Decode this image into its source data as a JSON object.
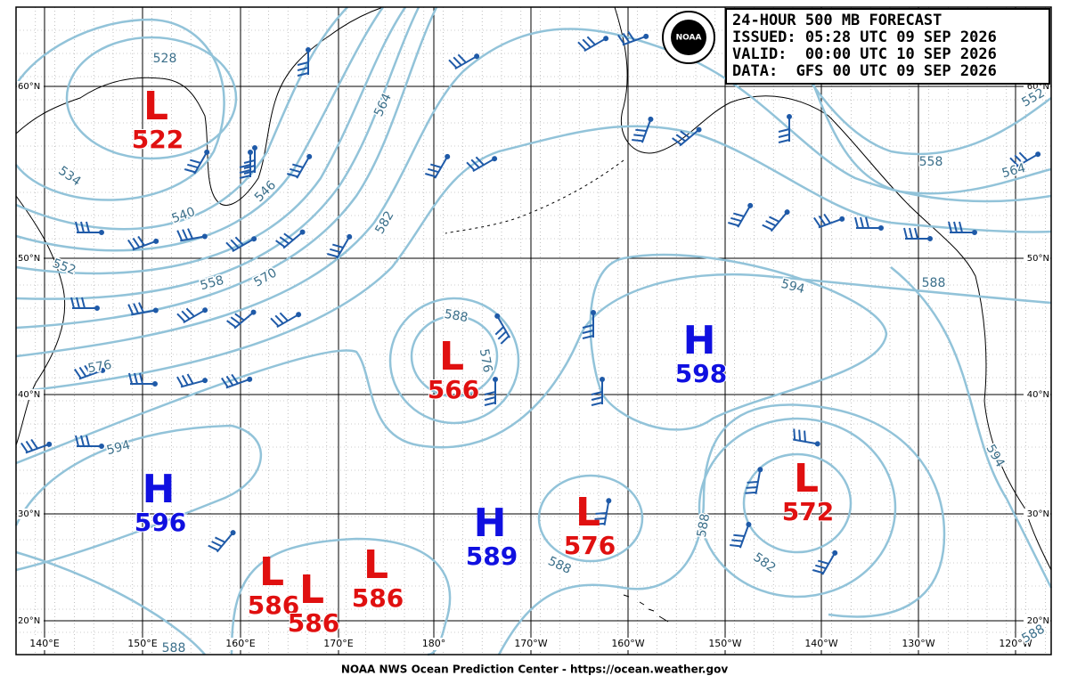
{
  "header": {
    "title": "24-HOUR 500 MB FORECAST",
    "issued": "ISSUED: 05:28 UTC 09 SEP 2026",
    "valid": "VALID:  00:00 UTC 10 SEP 2026",
    "data": "DATA:  GFS 00 UTC 09 SEP 2026"
  },
  "logo_text": "NOAA",
  "lat_labels": [
    "60°N",
    "50°N",
    "40°N",
    "30°N",
    "20°N"
  ],
  "lon_labels": [
    "140°E",
    "150°E",
    "160°E",
    "170°E",
    "180°",
    "170°W",
    "160°W",
    "150°W",
    "140°W",
    "130°W",
    "120°W"
  ],
  "centers": [
    {
      "symbol": "L",
      "value": "522"
    },
    {
      "symbol": "L",
      "value": "566"
    },
    {
      "symbol": "H",
      "value": "598"
    },
    {
      "symbol": "H",
      "value": "596"
    },
    {
      "symbol": "H",
      "value": "589"
    },
    {
      "symbol": "L",
      "value": "576"
    },
    {
      "symbol": "L",
      "value": "572"
    },
    {
      "symbol": "L",
      "value": "586"
    },
    {
      "symbol": "L",
      "value": "586"
    },
    {
      "symbol": "L",
      "value": "586"
    }
  ],
  "contour_labels": [
    "528",
    "534",
    "540",
    "546",
    "552",
    "558",
    "564",
    "570",
    "576",
    "582",
    "588",
    "576",
    "594",
    "588",
    "558",
    "564",
    "552",
    "594",
    "588",
    "588",
    "582",
    "594",
    "588",
    "588"
  ],
  "footer": "NOAA NWS Ocean Prediction Center - https://ocean.weather.gov"
}
